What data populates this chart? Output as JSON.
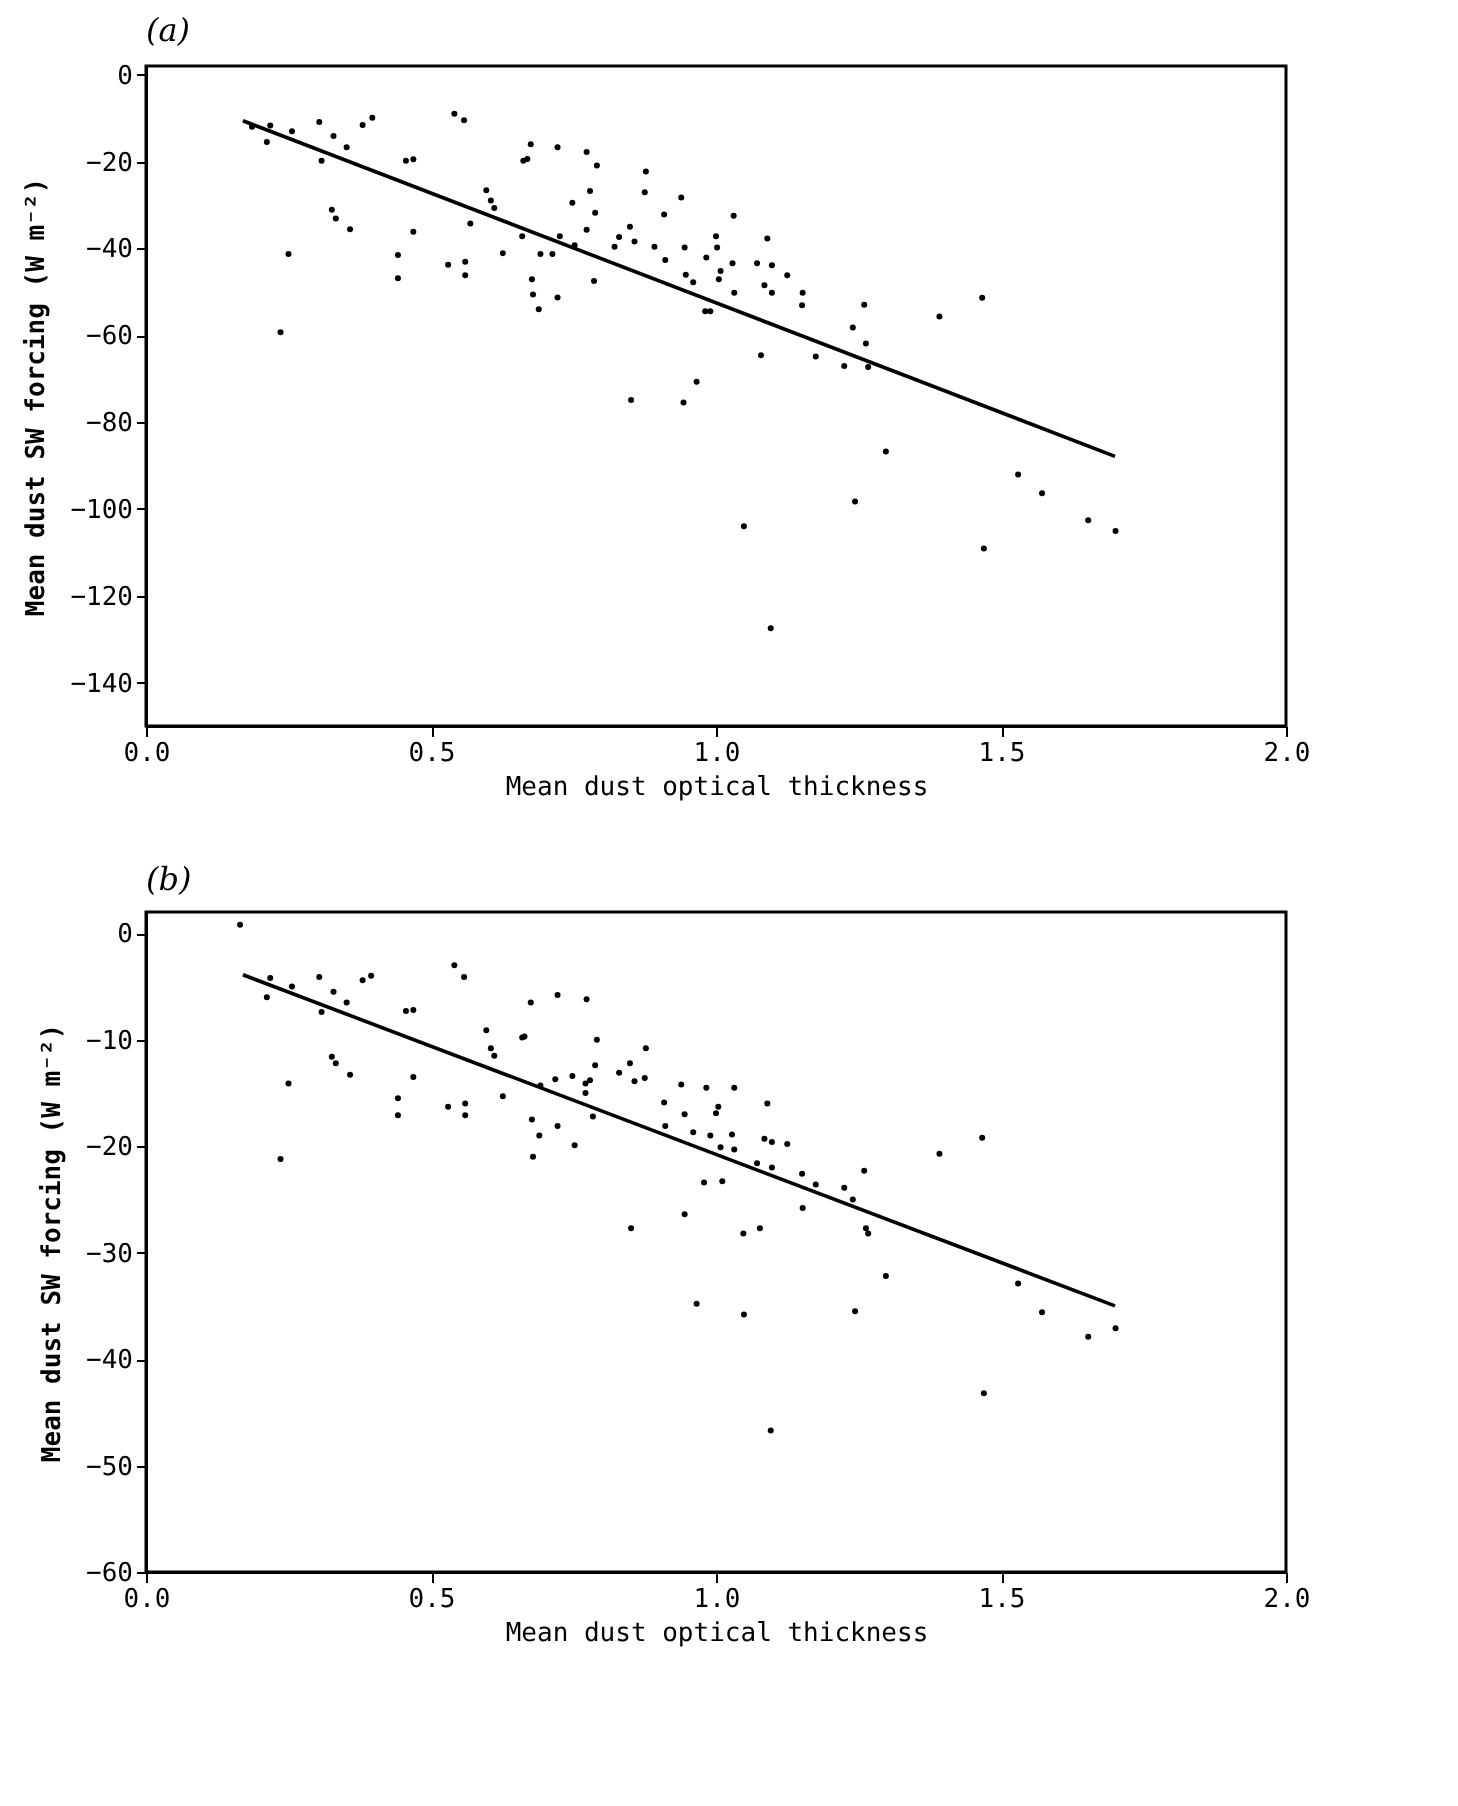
{
  "chart_data": [
    {
      "type": "scatter",
      "title": "(a)",
      "xlabel": "Mean dust optical thickness",
      "ylabel": "Mean dust SW forcing (W m⁻²)",
      "xlim": [
        0,
        2
      ],
      "xticks": [
        {
          "value": 0,
          "label": "0.0"
        },
        {
          "value": 0.5,
          "label": "0.5"
        },
        {
          "value": 1,
          "label": "1.0"
        },
        {
          "value": 1.5,
          "label": "1.5"
        },
        {
          "value": 2,
          "label": "2.0"
        }
      ],
      "ylim": [
        -150,
        2
      ],
      "yticks": [
        0,
        -20,
        -40,
        -60,
        -80,
        -100,
        -120,
        -140
      ],
      "series": [
        {
          "color": "#000000",
          "x": [
            0.186,
            0.218,
            0.212,
            0.256,
            0.304,
            0.308,
            0.329,
            0.352,
            0.38,
            0.397,
            0.25,
            0.236,
            0.326,
            0.333,
            0.358,
            0.456,
            0.469,
            0.469,
            0.442,
            0.442,
            0.541,
            0.558,
            0.53,
            0.56,
            0.56,
            0.597,
            0.605,
            0.611,
            0.569,
            0.626,
            0.66,
            0.662,
            0.669,
            0.675,
            0.722,
            0.773,
            0.791,
            0.677,
            0.679,
            0.689,
            0.692,
            0.713,
            0.722,
            0.726,
            0.748,
            0.752,
            0.773,
            0.779,
            0.788,
            0.786,
            0.822,
            0.83,
            0.849,
            0.857,
            0.851,
            0.877,
            0.875,
            0.892,
            0.909,
            0.911,
            0.939,
            0.945,
            0.947,
            0.96,
            0.943,
            0.966,
            0.981,
            0.99,
            0.983,
            1.0,
            1.002,
            1.008,
            1.005,
            1.031,
            1.029,
            1.032,
            1.09,
            1.072,
            1.098,
            1.085,
            1.098,
            1.125,
            1.152,
            1.151,
            1.079,
            1.175,
            1.225,
            1.24,
            1.26,
            1.263,
            1.267,
            1.298,
            1.244,
            1.392,
            1.467,
            1.47,
            1.53,
            1.572,
            1.653,
            1.701,
            1.049,
            1.096
          ],
          "values": [
            -12.0,
            -11.7,
            -15.5,
            -13.0,
            -10.9,
            -19.8,
            -14.1,
            -16.7,
            -11.6,
            -9.9,
            -41.3,
            -59.3,
            -31.1,
            -33.1,
            -35.6,
            -19.8,
            -19.5,
            -36.2,
            -41.5,
            -46.9,
            -9.0,
            -10.5,
            -43.8,
            -43.1,
            -46.2,
            -26.6,
            -29.0,
            -30.7,
            -34.3,
            -41.1,
            -37.2,
            -19.8,
            -19.4,
            -16.0,
            -16.7,
            -17.8,
            -20.9,
            -47.1,
            -50.6,
            -54.0,
            -41.3,
            -41.3,
            -51.3,
            -37.2,
            -29.5,
            -39.3,
            -35.7,
            -26.8,
            -31.8,
            -47.5,
            -39.6,
            -37.4,
            -35.0,
            -38.4,
            -74.9,
            -22.3,
            -27.1,
            -39.6,
            -32.2,
            -42.7,
            -28.3,
            -39.8,
            -46.1,
            -47.8,
            -75.5,
            -70.7,
            -54.5,
            -54.5,
            -42.1,
            -37.2,
            -39.8,
            -45.2,
            -47.1,
            -32.5,
            -43.4,
            -50.2,
            -37.7,
            -43.4,
            -43.9,
            -48.5,
            -50.2,
            -46.2,
            -50.2,
            -53.1,
            -64.6,
            -64.9,
            -67.1,
            -58.2,
            -53.0,
            -61.9,
            -67.3,
            -86.8,
            -98.3,
            -55.7,
            -51.4,
            -109.1,
            -92.1,
            -96.4,
            -102.6,
            -105.1,
            -104.0,
            -127.5
          ]
        },
        {
          "type": "line",
          "color": "#000000",
          "x": [
            0.17,
            1.7
          ],
          "values": [
            -10.6,
            -87.9
          ]
        }
      ]
    },
    {
      "type": "scatter",
      "title": "(b)",
      "xlabel": "Mean dust optical thickness",
      "ylabel": "Mean dust SW forcing (W m⁻²)",
      "xlim": [
        0,
        2
      ],
      "xticks": [
        {
          "value": 0,
          "label": "0.0"
        },
        {
          "value": 0.5,
          "label": "0.5"
        },
        {
          "value": 1,
          "label": "1.0"
        },
        {
          "value": 1.5,
          "label": "1.5"
        },
        {
          "value": 2,
          "label": "2.0"
        }
      ],
      "ylim": [
        -60,
        2
      ],
      "yticks": [
        0,
        -10,
        -20,
        -30,
        -40,
        -50,
        -60
      ],
      "series": [
        {
          "color": "#000000",
          "x": [
            0.165,
            0.218,
            0.212,
            0.256,
            0.304,
            0.308,
            0.329,
            0.352,
            0.38,
            0.395,
            0.25,
            0.236,
            0.326,
            0.333,
            0.358,
            0.456,
            0.469,
            0.469,
            0.442,
            0.442,
            0.541,
            0.558,
            0.53,
            0.56,
            0.56,
            0.597,
            0.605,
            0.611,
            0.626,
            0.66,
            0.664,
            0.675,
            0.722,
            0.773,
            0.791,
            0.677,
            0.69,
            0.679,
            0.692,
            0.718,
            0.722,
            0.748,
            0.752,
            0.771,
            0.771,
            0.779,
            0.788,
            0.784,
            0.83,
            0.849,
            0.857,
            0.851,
            0.877,
            0.875,
            0.909,
            0.911,
            0.939,
            0.945,
            0.945,
            0.96,
            0.966,
            0.979,
            0.983,
            0.99,
            1.0,
            1.004,
            1.011,
            1.008,
            1.032,
            1.028,
            1.032,
            1.048,
            1.049,
            1.09,
            1.085,
            1.098,
            1.072,
            1.098,
            1.077,
            1.125,
            1.151,
            1.152,
            1.175,
            1.225,
            1.24,
            1.26,
            1.263,
            1.267,
            1.298,
            1.244,
            1.392,
            1.467,
            1.47,
            1.53,
            1.572,
            1.653,
            1.701,
            1.096
          ],
          "values": [
            0.8,
            -4.2,
            -6.0,
            -5.0,
            -4.1,
            -7.4,
            -5.5,
            -6.5,
            -4.4,
            -4.0,
            -14.1,
            -21.2,
            -11.6,
            -12.2,
            -13.3,
            -7.3,
            -7.2,
            -13.5,
            -15.5,
            -17.1,
            -3.0,
            -4.1,
            -16.3,
            -16.0,
            -17.1,
            -9.1,
            -10.8,
            -11.5,
            -15.3,
            -9.8,
            -9.7,
            -6.5,
            -5.8,
            -6.2,
            -10.0,
            -17.5,
            -19.0,
            -21.0,
            -14.3,
            -13.7,
            -18.1,
            -13.4,
            -19.9,
            -14.1,
            -15.0,
            -13.8,
            -12.4,
            -17.2,
            -13.1,
            -12.2,
            -13.9,
            -27.7,
            -10.8,
            -13.6,
            -15.9,
            -18.1,
            -14.2,
            -17.0,
            -26.4,
            -18.7,
            -34.8,
            -23.4,
            -14.5,
            -19.0,
            -16.9,
            -16.3,
            -23.3,
            -20.1,
            -14.5,
            -18.9,
            -20.3,
            -28.2,
            -35.8,
            -16.0,
            -19.3,
            -19.6,
            -21.6,
            -22.0,
            -27.7,
            -19.8,
            -22.6,
            -25.8,
            -23.6,
            -23.9,
            -25.0,
            -22.3,
            -27.7,
            -28.2,
            -32.2,
            -35.5,
            -20.7,
            -19.2,
            -43.2,
            -32.9,
            -35.6,
            -37.9,
            -37.1,
            -46.7
          ]
        },
        {
          "type": "line",
          "color": "#000000",
          "x": [
            0.17,
            1.7
          ],
          "values": [
            -3.9,
            -35.0
          ]
        }
      ]
    }
  ]
}
